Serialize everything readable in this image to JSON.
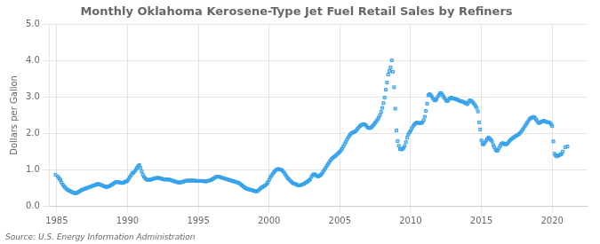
{
  "chart_data": {
    "type": "scatter",
    "title": "Monthly Oklahoma Kerosene-Type Jet Fuel Retail Sales by Refiners",
    "ylabel": "Dollars per Gallon",
    "annotations": [
      "Source: U.S. Energy Information Administration"
    ],
    "marker": "square",
    "grid": true,
    "xlim": [
      1984.5,
      2022.5
    ],
    "xticks": [
      1985,
      1990,
      1995,
      2000,
      2005,
      2010,
      2015,
      2020
    ],
    "ylim": [
      0.0,
      5.0
    ],
    "yticks": [
      {
        "value": 0.0,
        "label": "0.0"
      },
      {
        "value": 1.0,
        "label": "1.0"
      },
      {
        "value": 2.0,
        "label": "2.0"
      },
      {
        "value": 3.0,
        "label": "3.0"
      },
      {
        "value": 4.0,
        "label": "4.0"
      },
      {
        "value": 5.0,
        "label": "5.0"
      }
    ],
    "x": [
      1984.917,
      1985.083,
      1985.167,
      1985.25,
      1985.333,
      1985.417,
      1985.5,
      1985.583,
      1985.667,
      1985.75,
      1985.833,
      1985.917,
      1986.0,
      1986.083,
      1986.167,
      1986.25,
      1986.333,
      1986.417,
      1986.5,
      1986.583,
      1986.667,
      1986.75,
      1986.833,
      1986.917,
      1987.0,
      1987.083,
      1987.167,
      1987.25,
      1987.333,
      1987.417,
      1987.5,
      1987.583,
      1987.667,
      1987.75,
      1987.833,
      1987.917,
      1988.0,
      1988.083,
      1988.167,
      1988.25,
      1988.333,
      1988.417,
      1988.5,
      1988.583,
      1988.667,
      1988.75,
      1988.833,
      1988.917,
      1989.0,
      1989.083,
      1989.167,
      1989.25,
      1989.333,
      1989.417,
      1989.5,
      1989.583,
      1989.667,
      1989.75,
      1989.833,
      1989.917,
      1990.0,
      1990.083,
      1990.167,
      1990.25,
      1990.333,
      1990.417,
      1990.5,
      1990.583,
      1990.667,
      1990.75,
      1990.833,
      1990.917,
      1991.0,
      1991.083,
      1991.167,
      1991.25,
      1991.333,
      1991.417,
      1991.5,
      1991.583,
      1991.667,
      1991.75,
      1991.833,
      1991.917,
      1992.0,
      1992.083,
      1992.167,
      1992.25,
      1992.333,
      1992.417,
      1992.5,
      1992.583,
      1992.667,
      1992.75,
      1992.833,
      1992.917,
      1993.0,
      1993.083,
      1993.167,
      1993.25,
      1993.333,
      1993.417,
      1993.5,
      1993.583,
      1993.667,
      1993.75,
      1993.833,
      1993.917,
      1994.0,
      1994.083,
      1994.167,
      1994.25,
      1994.333,
      1994.417,
      1994.5,
      1994.583,
      1994.667,
      1994.75,
      1994.833,
      1994.917,
      1995.0,
      1995.083,
      1995.167,
      1995.25,
      1995.333,
      1995.417,
      1995.5,
      1995.583,
      1995.667,
      1995.75,
      1995.833,
      1995.917,
      1996.0,
      1996.083,
      1996.167,
      1996.25,
      1996.333,
      1996.417,
      1996.5,
      1996.583,
      1996.667,
      1996.75,
      1996.833,
      1996.917,
      1997.0,
      1997.083,
      1997.167,
      1997.25,
      1997.333,
      1997.417,
      1997.5,
      1997.583,
      1997.667,
      1997.75,
      1997.833,
      1997.917,
      1998.0,
      1998.083,
      1998.167,
      1998.25,
      1998.333,
      1998.417,
      1998.5,
      1998.583,
      1998.667,
      1998.75,
      1998.833,
      1998.917,
      1999.0,
      1999.083,
      1999.167,
      1999.25,
      1999.333,
      1999.417,
      1999.5,
      1999.583,
      1999.667,
      1999.75,
      1999.833,
      1999.917,
      2000.0,
      2000.083,
      2000.167,
      2000.25,
      2000.333,
      2000.417,
      2000.5,
      2000.583,
      2000.667,
      2000.75,
      2000.833,
      2000.917,
      2001.0,
      2001.083,
      2001.167,
      2001.25,
      2001.333,
      2001.417,
      2001.5,
      2001.583,
      2001.667,
      2001.75,
      2001.833,
      2001.917,
      2002.0,
      2002.083,
      2002.167,
      2002.25,
      2002.333,
      2002.417,
      2002.5,
      2002.583,
      2002.667,
      2002.75,
      2002.833,
      2002.917,
      2003.0,
      2003.083,
      2003.167,
      2003.25,
      2003.333,
      2003.417,
      2003.5,
      2003.583,
      2003.667,
      2003.75,
      2003.833,
      2003.917,
      2004.0,
      2004.083,
      2004.167,
      2004.25,
      2004.333,
      2004.417,
      2004.5,
      2004.583,
      2004.667,
      2004.75,
      2004.833,
      2004.917,
      2005.0,
      2005.083,
      2005.167,
      2005.25,
      2005.333,
      2005.417,
      2005.5,
      2005.583,
      2005.667,
      2005.75,
      2005.833,
      2005.917,
      2006.0,
      2006.083,
      2006.167,
      2006.25,
      2006.333,
      2006.417,
      2006.5,
      2006.583,
      2006.667,
      2006.75,
      2006.833,
      2006.917,
      2007.0,
      2007.083,
      2007.167,
      2007.25,
      2007.333,
      2007.417,
      2007.5,
      2007.583,
      2007.667,
      2007.75,
      2007.833,
      2007.917,
      2008.0,
      2008.083,
      2008.167,
      2008.25,
      2008.333,
      2008.417,
      2008.5,
      2008.583,
      2008.667,
      2008.75,
      2008.833,
      2008.917,
      2009.0,
      2009.083,
      2009.167,
      2009.25,
      2009.333,
      2009.417,
      2009.5,
      2009.583,
      2009.667,
      2009.75,
      2009.833,
      2009.917,
      2010.0,
      2010.083,
      2010.167,
      2010.25,
      2010.333,
      2010.417,
      2010.5,
      2010.583,
      2010.667,
      2010.75,
      2010.833,
      2010.917,
      2011.0,
      2011.083,
      2011.167,
      2011.25,
      2011.333,
      2011.417,
      2011.5,
      2011.583,
      2011.667,
      2011.75,
      2011.833,
      2011.917,
      2012.0,
      2012.083,
      2012.167,
      2012.25,
      2012.333,
      2012.417,
      2012.5,
      2012.583,
      2012.667,
      2012.75,
      2012.833,
      2012.917,
      2013.0,
      2013.083,
      2013.167,
      2013.25,
      2013.333,
      2013.417,
      2013.5,
      2013.583,
      2013.667,
      2013.75,
      2013.833,
      2013.917,
      2014.0,
      2014.083,
      2014.167,
      2014.25,
      2014.333,
      2014.417,
      2014.5,
      2014.583,
      2014.667,
      2014.75,
      2014.833,
      2014.917,
      2015.0,
      2015.083,
      2015.167,
      2015.25,
      2015.333,
      2015.417,
      2015.5,
      2015.583,
      2015.667,
      2015.75,
      2015.833,
      2015.917,
      2016.0,
      2016.083,
      2016.167,
      2016.25,
      2016.333,
      2016.417,
      2016.5,
      2016.583,
      2016.667,
      2016.75,
      2016.833,
      2016.917,
      2017.0,
      2017.083,
      2017.167,
      2017.25,
      2017.333,
      2017.417,
      2017.5,
      2017.583,
      2017.667,
      2017.75,
      2017.833,
      2017.917,
      2018.0,
      2018.083,
      2018.167,
      2018.25,
      2018.333,
      2018.417,
      2018.5,
      2018.583,
      2018.667,
      2018.75,
      2018.833,
      2018.917,
      2019.0,
      2019.083,
      2019.167,
      2019.25,
      2019.333,
      2019.417,
      2019.5,
      2019.583,
      2019.667,
      2019.75,
      2019.833,
      2019.917,
      2020.0,
      2020.083,
      2020.167,
      2020.25,
      2020.333,
      2020.417,
      2020.5,
      2020.583,
      2020.667,
      2020.75,
      2020.917,
      2021.083
    ],
    "values": [
      0.86,
      0.81,
      0.76,
      0.72,
      0.65,
      0.59,
      0.55,
      0.51,
      0.48,
      0.45,
      0.43,
      0.42,
      0.4,
      0.38,
      0.37,
      0.36,
      0.35,
      0.36,
      0.38,
      0.4,
      0.42,
      0.44,
      0.455,
      0.465,
      0.475,
      0.49,
      0.505,
      0.515,
      0.525,
      0.535,
      0.55,
      0.56,
      0.57,
      0.585,
      0.6,
      0.61,
      0.6,
      0.59,
      0.575,
      0.56,
      0.545,
      0.535,
      0.525,
      0.53,
      0.54,
      0.555,
      0.575,
      0.595,
      0.615,
      0.64,
      0.66,
      0.665,
      0.66,
      0.65,
      0.645,
      0.635,
      0.64,
      0.65,
      0.665,
      0.68,
      0.7,
      0.75,
      0.8,
      0.85,
      0.9,
      0.92,
      0.95,
      1.0,
      1.05,
      1.1,
      1.13,
      1.05,
      0.95,
      0.86,
      0.8,
      0.76,
      0.73,
      0.72,
      0.72,
      0.72,
      0.73,
      0.74,
      0.75,
      0.76,
      0.77,
      0.775,
      0.775,
      0.77,
      0.76,
      0.75,
      0.74,
      0.73,
      0.73,
      0.73,
      0.73,
      0.73,
      0.72,
      0.71,
      0.7,
      0.69,
      0.68,
      0.67,
      0.66,
      0.65,
      0.65,
      0.65,
      0.66,
      0.67,
      0.68,
      0.69,
      0.7,
      0.7,
      0.7,
      0.7,
      0.7,
      0.7,
      0.7,
      0.7,
      0.695,
      0.69,
      0.69,
      0.69,
      0.69,
      0.69,
      0.685,
      0.682,
      0.68,
      0.68,
      0.69,
      0.7,
      0.71,
      0.72,
      0.74,
      0.76,
      0.78,
      0.8,
      0.81,
      0.81,
      0.8,
      0.79,
      0.78,
      0.77,
      0.76,
      0.75,
      0.74,
      0.73,
      0.72,
      0.71,
      0.7,
      0.69,
      0.68,
      0.67,
      0.66,
      0.65,
      0.64,
      0.625,
      0.6,
      0.57,
      0.545,
      0.515,
      0.495,
      0.478,
      0.468,
      0.458,
      0.448,
      0.44,
      0.432,
      0.422,
      0.412,
      0.402,
      0.412,
      0.432,
      0.46,
      0.49,
      0.515,
      0.535,
      0.555,
      0.575,
      0.605,
      0.655,
      0.72,
      0.785,
      0.835,
      0.885,
      0.925,
      0.96,
      1.0,
      1.01,
      1.02,
      1.01,
      1.0,
      0.985,
      0.95,
      0.905,
      0.855,
      0.805,
      0.76,
      0.728,
      0.698,
      0.668,
      0.638,
      0.618,
      0.608,
      0.598,
      0.578,
      0.568,
      0.568,
      0.578,
      0.59,
      0.602,
      0.62,
      0.642,
      0.662,
      0.682,
      0.71,
      0.745,
      0.812,
      0.852,
      0.875,
      0.87,
      0.84,
      0.82,
      0.82,
      0.84,
      0.862,
      0.9,
      0.95,
      1.005,
      1.055,
      1.105,
      1.155,
      1.205,
      1.255,
      1.295,
      1.325,
      1.355,
      1.375,
      1.405,
      1.435,
      1.465,
      1.495,
      1.535,
      1.585,
      1.645,
      1.705,
      1.765,
      1.825,
      1.88,
      1.935,
      1.975,
      2.005,
      2.025,
      2.035,
      2.055,
      2.085,
      2.125,
      2.165,
      2.205,
      2.225,
      2.245,
      2.255,
      2.245,
      2.225,
      2.185,
      2.155,
      2.145,
      2.155,
      2.175,
      2.215,
      2.255,
      2.295,
      2.335,
      2.385,
      2.435,
      2.505,
      2.595,
      2.705,
      2.835,
      2.985,
      3.205,
      3.4,
      3.62,
      3.72,
      3.82,
      4.015,
      3.7,
      3.27,
      2.68,
      2.08,
      1.79,
      1.66,
      1.57,
      1.56,
      1.565,
      1.6,
      1.655,
      1.76,
      1.88,
      1.97,
      2.025,
      2.075,
      2.135,
      2.195,
      2.24,
      2.27,
      2.295,
      2.295,
      2.285,
      2.28,
      2.285,
      2.305,
      2.36,
      2.46,
      2.62,
      2.82,
      3.05,
      3.08,
      3.06,
      3.01,
      2.96,
      2.915,
      2.91,
      2.95,
      3.01,
      3.06,
      3.11,
      3.11,
      3.06,
      3.01,
      2.96,
      2.91,
      2.89,
      2.91,
      2.96,
      2.985,
      2.975,
      2.965,
      2.955,
      2.945,
      2.935,
      2.925,
      2.905,
      2.895,
      2.885,
      2.875,
      2.865,
      2.845,
      2.825,
      2.805,
      2.855,
      2.905,
      2.905,
      2.875,
      2.845,
      2.805,
      2.755,
      2.705,
      2.605,
      2.305,
      2.105,
      1.805,
      1.705,
      1.7,
      1.75,
      1.8,
      1.855,
      1.882,
      1.862,
      1.822,
      1.782,
      1.682,
      1.622,
      1.552,
      1.522,
      1.532,
      1.6,
      1.66,
      1.72,
      1.73,
      1.72,
      1.7,
      1.7,
      1.72,
      1.76,
      1.8,
      1.83,
      1.855,
      1.882,
      1.905,
      1.925,
      1.945,
      1.965,
      1.985,
      2.025,
      2.055,
      2.105,
      2.155,
      2.205,
      2.255,
      2.305,
      2.355,
      2.405,
      2.425,
      2.435,
      2.455,
      2.445,
      2.405,
      2.355,
      2.305,
      2.285,
      2.305,
      2.325,
      2.335,
      2.345,
      2.335,
      2.315,
      2.305,
      2.305,
      2.295,
      2.255,
      2.2,
      1.78,
      1.44,
      1.39,
      1.37,
      1.385,
      1.4,
      1.42,
      1.435,
      1.5,
      1.62,
      1.64
    ]
  }
}
